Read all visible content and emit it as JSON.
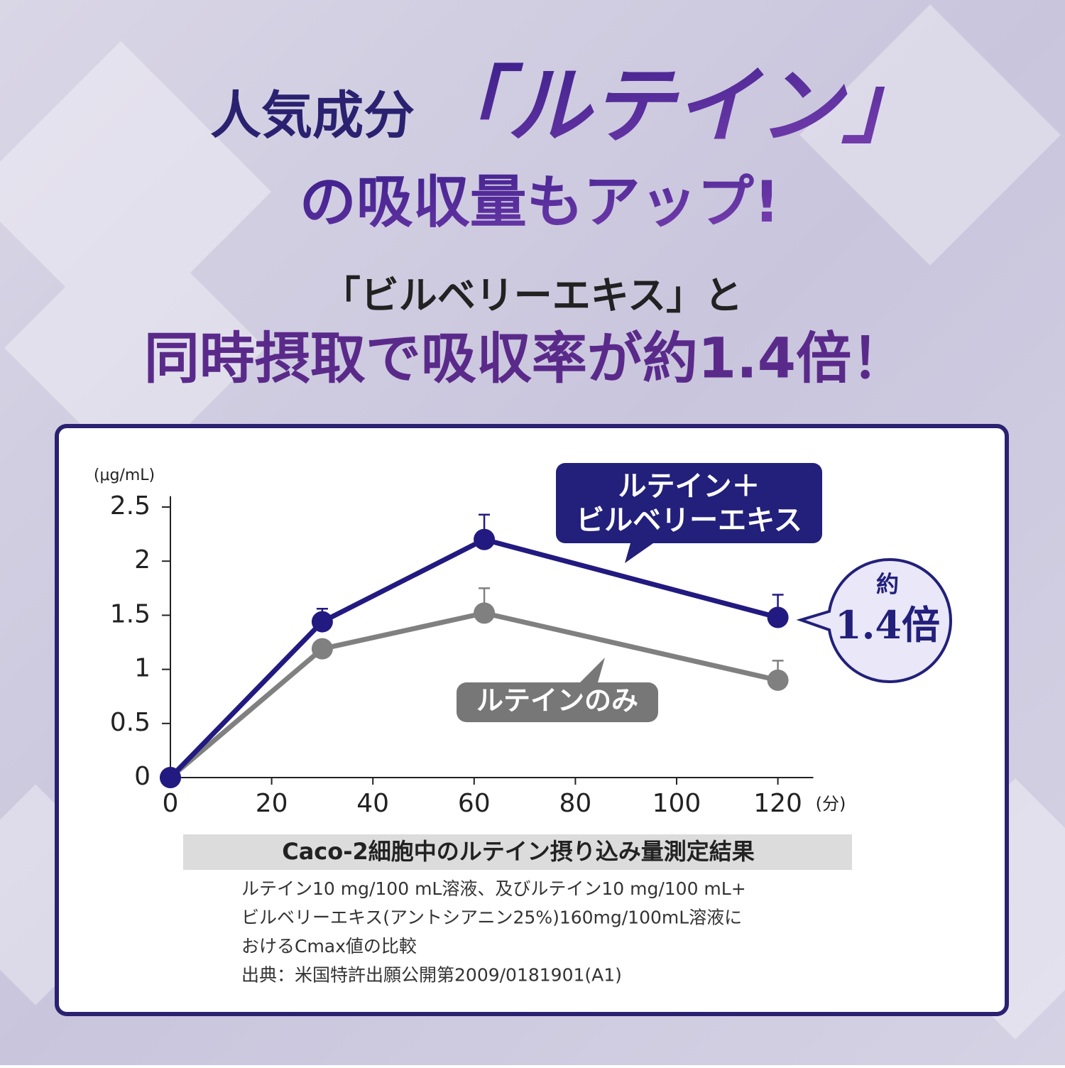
{
  "chart_data": {
    "type": "line",
    "headline": [
      "人気成分",
      "「ルテイン」",
      "の吸収量もアップ!"
    ],
    "subtitle": [
      "「ビルベリーエキス」と",
      "同時摂取で吸収率が約1.4倍！"
    ],
    "y_label": "(μg/mL)",
    "x_label": "(分)",
    "x": [
      0,
      30,
      62,
      120
    ],
    "series": [
      {
        "name": "ルテイン＋\nビルベリーエキス",
        "color": "#221a80",
        "values": [
          0,
          1.44,
          2.2,
          1.48
        ],
        "errors": [
          null,
          0.12,
          0.23,
          0.21
        ]
      },
      {
        "name": "ルテインのみ",
        "color": "#808080",
        "values": [
          0,
          1.19,
          1.52,
          0.9
        ],
        "errors": [
          null,
          null,
          0.23,
          0.18
        ]
      }
    ],
    "xlim": [
      0,
      127
    ],
    "ylim": [
      0,
      2.6
    ],
    "xticks": [
      0,
      20,
      40,
      60,
      80,
      100,
      120
    ],
    "yticks": [
      0,
      0.5,
      1,
      1.5,
      2,
      2.5
    ],
    "callout": [
      "約",
      "1.4倍"
    ],
    "caption": "Caco-2細胞中のルテイン摂り込み量測定結果",
    "notes": [
      "ルテイン10 mg/100 mL溶液、及びルテイン10 mg/100 mL+",
      "ビルベリーエキス(アントシアニン25%)160mg/100mL溶液に",
      "おけるCmax値の比較",
      "出典：米国特許出願公開第2009/0181901(A1)"
    ]
  }
}
